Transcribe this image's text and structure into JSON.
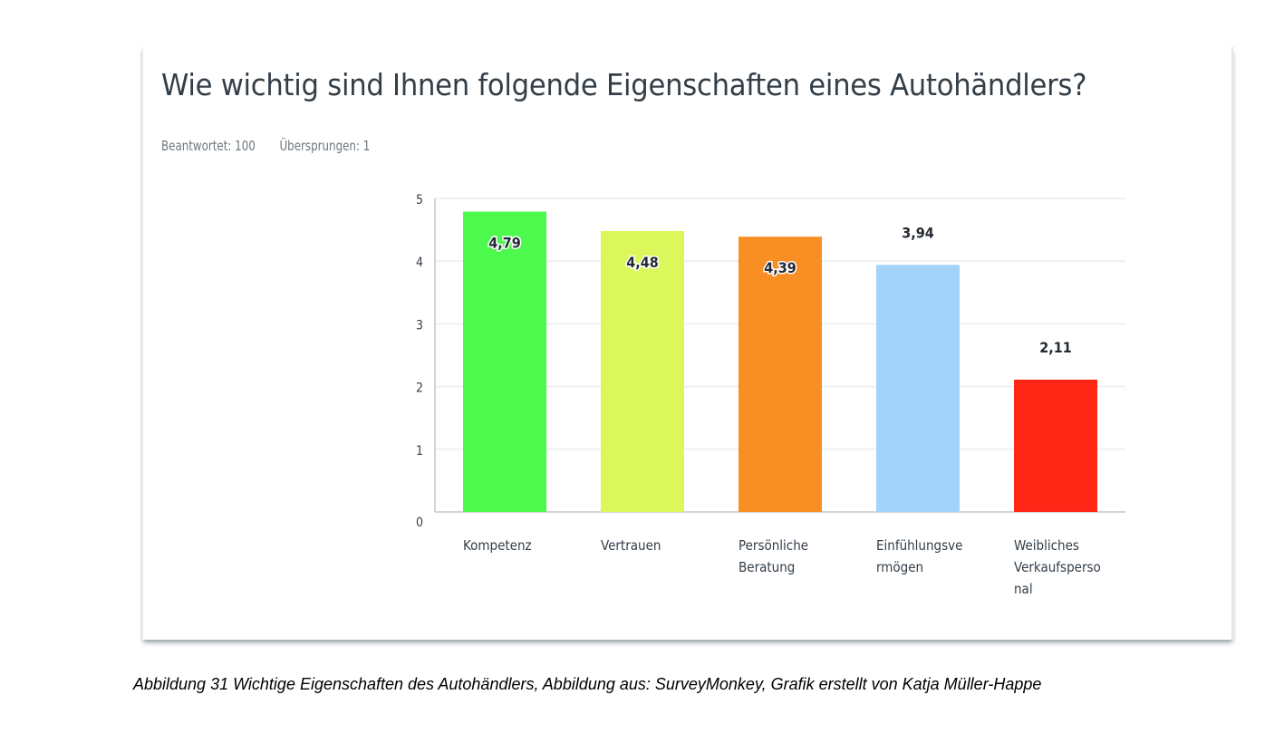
{
  "card": {
    "title": "Wie wichtig sind Ihnen folgende Eigenschaften eines Autohändlers?",
    "answered": "Beantwortet: 100",
    "skipped": "Übersprungen: 1"
  },
  "caption": "Abbildung 31 Wichtige Eigenschaften des Autohändlers, Abbildung aus: SurveyMonkey, Grafik erstellt von Katja Müller-Happe",
  "chart_data": {
    "type": "bar",
    "title": "Wie wichtig sind Ihnen folgende Eigenschaften eines Autohändlers?",
    "xlabel": "",
    "ylabel": "",
    "ylim": [
      0,
      5
    ],
    "yticks": [
      0,
      1,
      2,
      3,
      4,
      5
    ],
    "grid": true,
    "legend": "none",
    "categories": [
      [
        "Kompetenz"
      ],
      [
        "Vertrauen"
      ],
      [
        "Persönliche",
        "Beratung"
      ],
      [
        "Einfühlungsve",
        "rmögen"
      ],
      [
        "Weibliches",
        "Verkaufsperso",
        "nal"
      ]
    ],
    "values": [
      4.79,
      4.48,
      4.39,
      3.94,
      2.11
    ],
    "value_labels": [
      "4,79",
      "4,48",
      "4,39",
      "3,94",
      "2,11"
    ],
    "colors": [
      "#4cf94c",
      "#dbf75b",
      "#f98f24",
      "#a3d3fb",
      "#ff2616"
    ]
  }
}
